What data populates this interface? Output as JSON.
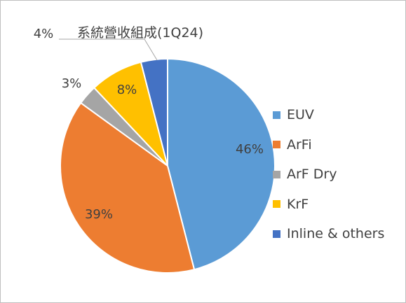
{
  "chart_data": {
    "type": "pie",
    "title": "系統營收組成(1Q24)",
    "categories": [
      "EUV",
      "ArFi",
      "ArF Dry",
      "KrF",
      "Inline & others"
    ],
    "values": [
      46,
      39,
      3,
      8,
      4
    ],
    "value_labels": [
      "46%",
      "39%",
      "3%",
      "8%",
      "4%"
    ],
    "colors": [
      "#5b9bd5",
      "#ed7d31",
      "#a5a5a5",
      "#ffc000",
      "#4472c4"
    ],
    "legend_position": "right"
  }
}
